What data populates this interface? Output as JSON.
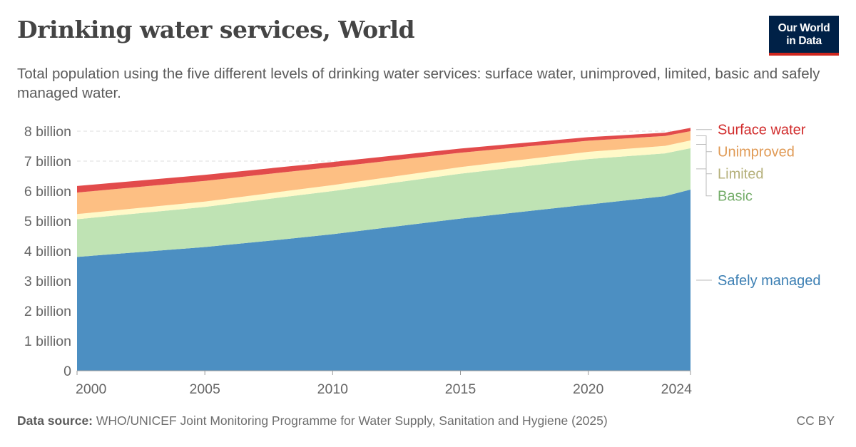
{
  "header": {
    "title": "Drinking water services, World",
    "subtitle": "Total population using the five different levels of drinking water services: surface water, unimproved, limited, basic and safely managed water."
  },
  "logo": {
    "line1": "Our World",
    "line2": "in Data"
  },
  "footer": {
    "source_label": "Data source:",
    "source_text": "WHO/UNICEF Joint Monitoring Programme for Water Supply, Sanitation and Hygiene (2025)",
    "license": "CC BY"
  },
  "chart_data": {
    "type": "area",
    "stacked": true,
    "x": [
      2000,
      2005,
      2008,
      2010,
      2015,
      2020,
      2023,
      2024
    ],
    "series": [
      {
        "name": "Safely managed",
        "color": "#4c8fc2",
        "label_color": "#3c7fb3",
        "values": [
          3.8,
          4.13,
          4.38,
          4.56,
          5.08,
          5.55,
          5.83,
          6.05
        ]
      },
      {
        "name": "Basic",
        "color": "#bfe3b4",
        "label_color": "#74ad69",
        "values": [
          1.26,
          1.34,
          1.41,
          1.44,
          1.5,
          1.52,
          1.43,
          1.38
        ]
      },
      {
        "name": "Limited",
        "color": "#fff9c8",
        "label_color": "#b5b07a",
        "values": [
          0.17,
          0.18,
          0.19,
          0.2,
          0.22,
          0.24,
          0.25,
          0.26
        ]
      },
      {
        "name": "Unimproved",
        "color": "#fdbf83",
        "label_color": "#e09a55",
        "values": [
          0.72,
          0.69,
          0.64,
          0.6,
          0.48,
          0.37,
          0.33,
          0.31
        ]
      },
      {
        "name": "Surface water",
        "color": "#e24b4b",
        "label_color": "#d12c2c",
        "values": [
          0.22,
          0.2,
          0.18,
          0.17,
          0.14,
          0.12,
          0.11,
          0.11
        ]
      }
    ],
    "y_ticks": [
      {
        "value": 0,
        "label": "0"
      },
      {
        "value": 1,
        "label": "1 billion"
      },
      {
        "value": 2,
        "label": "2 billion"
      },
      {
        "value": 3,
        "label": "3 billion"
      },
      {
        "value": 4,
        "label": "4 billion"
      },
      {
        "value": 5,
        "label": "5 billion"
      },
      {
        "value": 6,
        "label": "6 billion"
      },
      {
        "value": 7,
        "label": "7 billion"
      },
      {
        "value": 8,
        "label": "8 billion"
      }
    ],
    "x_ticks": [
      {
        "value": 2000,
        "label": "2000"
      },
      {
        "value": 2005,
        "label": "2005"
      },
      {
        "value": 2010,
        "label": "2010"
      },
      {
        "value": 2015,
        "label": "2015"
      },
      {
        "value": 2020,
        "label": "2020"
      },
      {
        "value": 2024,
        "label": "2024"
      }
    ],
    "xlim": [
      2000,
      2024
    ],
    "ylim": [
      0,
      8
    ],
    "grid": "horizontal-dashed",
    "legend": "right"
  }
}
